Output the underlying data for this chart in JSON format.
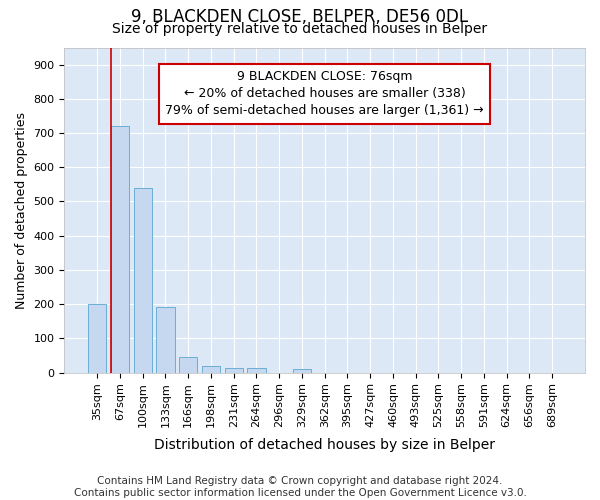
{
  "title1": "9, BLACKDEN CLOSE, BELPER, DE56 0DL",
  "title2": "Size of property relative to detached houses in Belper",
  "xlabel": "Distribution of detached houses by size in Belper",
  "ylabel": "Number of detached properties",
  "bar_labels": [
    "35sqm",
    "67sqm",
    "100sqm",
    "133sqm",
    "166sqm",
    "198sqm",
    "231sqm",
    "264sqm",
    "296sqm",
    "329sqm",
    "362sqm",
    "395sqm",
    "427sqm",
    "460sqm",
    "493sqm",
    "525sqm",
    "558sqm",
    "591sqm",
    "624sqm",
    "656sqm",
    "689sqm"
  ],
  "bar_values": [
    200,
    720,
    540,
    192,
    46,
    20,
    14,
    12,
    0,
    10,
    0,
    0,
    0,
    0,
    0,
    0,
    0,
    0,
    0,
    0,
    0
  ],
  "bar_color": "#c5d8f0",
  "bar_edge_color": "#6baed6",
  "background_color": "#dce8f5",
  "grid_color": "#ffffff",
  "figure_bg": "#ffffff",
  "ylim": [
    0,
    950
  ],
  "yticks": [
    0,
    100,
    200,
    300,
    400,
    500,
    600,
    700,
    800,
    900
  ],
  "red_line_bar_index": 1,
  "annotation_text": "9 BLACKDEN CLOSE: 76sqm\n← 20% of detached houses are smaller (338)\n79% of semi-detached houses are larger (1,361) →",
  "annotation_box_color": "#ffffff",
  "annotation_border_color": "#cc0000",
  "footer_text": "Contains HM Land Registry data © Crown copyright and database right 2024.\nContains public sector information licensed under the Open Government Licence v3.0.",
  "title1_fontsize": 12,
  "title2_fontsize": 10,
  "xlabel_fontsize": 10,
  "ylabel_fontsize": 9,
  "tick_fontsize": 8,
  "annotation_fontsize": 9,
  "footer_fontsize": 7.5
}
